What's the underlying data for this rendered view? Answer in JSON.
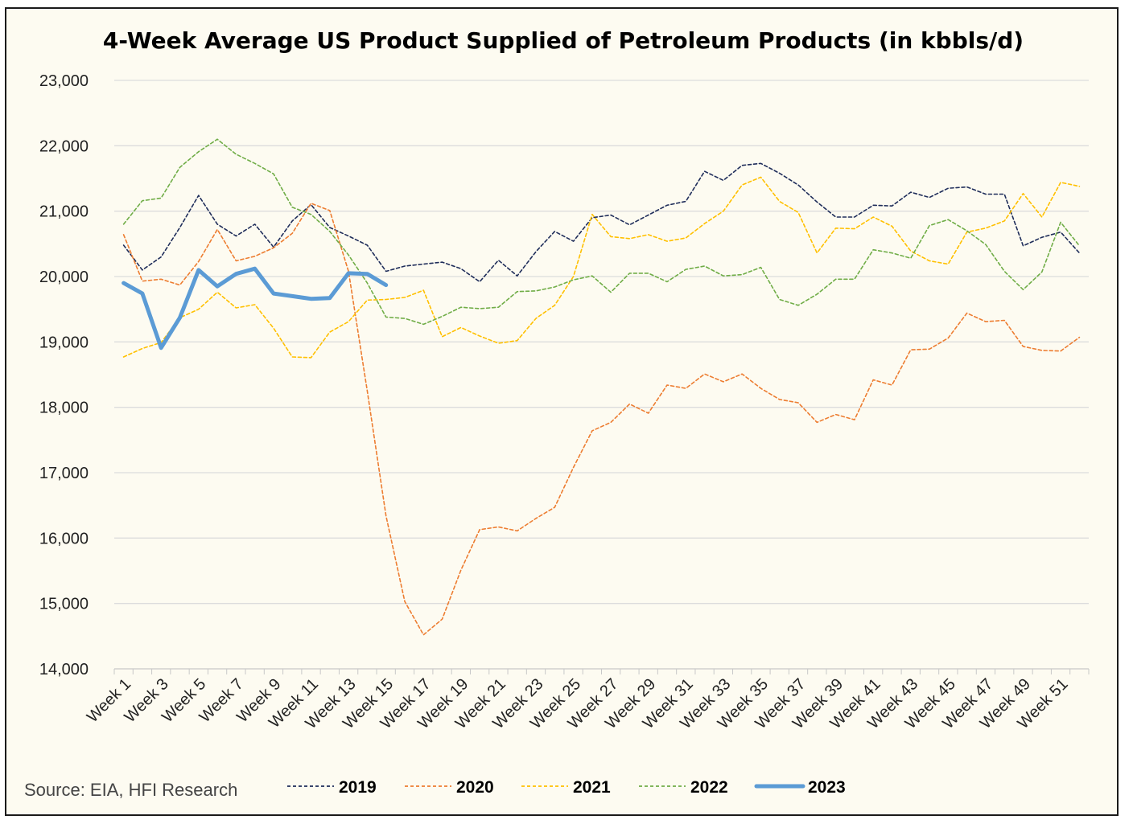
{
  "chart_data": {
    "type": "line",
    "title": "4-Week Average US Product Supplied of Petroleum Products (in kbbls/d)",
    "source": "Source: EIA, HFI Research",
    "xlabel": "",
    "ylabel": "",
    "ylim": [
      14000,
      23000
    ],
    "yticks": [
      "14,000",
      "15,000",
      "16,000",
      "17,000",
      "18,000",
      "19,000",
      "20,000",
      "21,000",
      "22,000",
      "23,000"
    ],
    "xtick_labels": [
      "Week 1",
      "Week 3",
      "Week 5",
      "Week 7",
      "Week 9",
      "Week 11",
      "Week 13",
      "Week 15",
      "Week 17",
      "Week 19",
      "Week 21",
      "Week 23",
      "Week 25",
      "Week 27",
      "Week 29",
      "Week 31",
      "Week 33",
      "Week 35",
      "Week 37",
      "Week 39",
      "Week 41",
      "Week 43",
      "Week 45",
      "Week 47",
      "Week 49",
      "Week 51"
    ],
    "grid": "horizontal",
    "legend_position": "bottom",
    "series": [
      {
        "name": "2019",
        "color": "#1f2d5a",
        "style": "dashed",
        "values": [
          20480,
          20100,
          20300,
          20750,
          21240,
          20800,
          20620,
          20800,
          20450,
          20850,
          21100,
          20750,
          20620,
          20480,
          20080,
          20160,
          20190,
          20220,
          20120,
          19920,
          20250,
          20010,
          20380,
          20690,
          20540,
          20900,
          20940,
          20790,
          20940,
          21090,
          21150,
          21610,
          21470,
          21700,
          21730,
          21580,
          21400,
          21140,
          20910,
          20910,
          21090,
          21080,
          21290,
          21210,
          21350,
          21370,
          21260,
          21260,
          20470,
          20600,
          20680,
          20360
        ]
      },
      {
        "name": "2020",
        "color": "#ed7d31",
        "style": "dashed",
        "values": [
          20640,
          19930,
          19960,
          19870,
          20230,
          20720,
          20240,
          20310,
          20440,
          20660,
          21120,
          21010,
          20080,
          18250,
          16340,
          15030,
          14520,
          14760,
          15510,
          16130,
          16170,
          16110,
          16300,
          16470,
          17080,
          17640,
          17770,
          18050,
          17910,
          18340,
          18290,
          18510,
          18390,
          18510,
          18290,
          18120,
          18070,
          17770,
          17890,
          17810,
          18420,
          18340,
          18880,
          18890,
          19060,
          19440,
          19310,
          19330,
          18930,
          18870,
          18860,
          19070
        ]
      },
      {
        "name": "2021",
        "color": "#ffc000",
        "style": "dashed",
        "values": [
          18770,
          18900,
          18990,
          19370,
          19500,
          19760,
          19520,
          19570,
          19210,
          18770,
          18760,
          19150,
          19310,
          19640,
          19650,
          19680,
          19790,
          19080,
          19220,
          19090,
          18980,
          19020,
          19360,
          19560,
          20000,
          20950,
          20610,
          20580,
          20640,
          20540,
          20590,
          20810,
          21000,
          21400,
          21520,
          21150,
          20980,
          20360,
          20740,
          20730,
          20910,
          20770,
          20390,
          20240,
          20190,
          20680,
          20740,
          20850,
          21270,
          20910,
          21440,
          21380
        ]
      },
      {
        "name": "2022",
        "color": "#70ad47",
        "style": "dashed",
        "values": [
          20800,
          21160,
          21200,
          21670,
          21910,
          22100,
          21870,
          21730,
          21570,
          21060,
          20950,
          20690,
          20330,
          19900,
          19380,
          19360,
          19270,
          19390,
          19530,
          19510,
          19530,
          19770,
          19780,
          19840,
          19950,
          20010,
          19760,
          20050,
          20050,
          19920,
          20110,
          20160,
          20010,
          20030,
          20140,
          19650,
          19560,
          19730,
          19960,
          19960,
          20410,
          20360,
          20280,
          20780,
          20870,
          20700,
          20490,
          20080,
          19800,
          20070,
          20830,
          20470
        ]
      },
      {
        "name": "2023",
        "color": "#5b9bd5",
        "style": "solid",
        "values": [
          19900,
          19740,
          18910,
          19370,
          20100,
          19850,
          20040,
          20120,
          19740,
          19700,
          19660,
          19670,
          20050,
          20040,
          19870
        ]
      }
    ]
  }
}
